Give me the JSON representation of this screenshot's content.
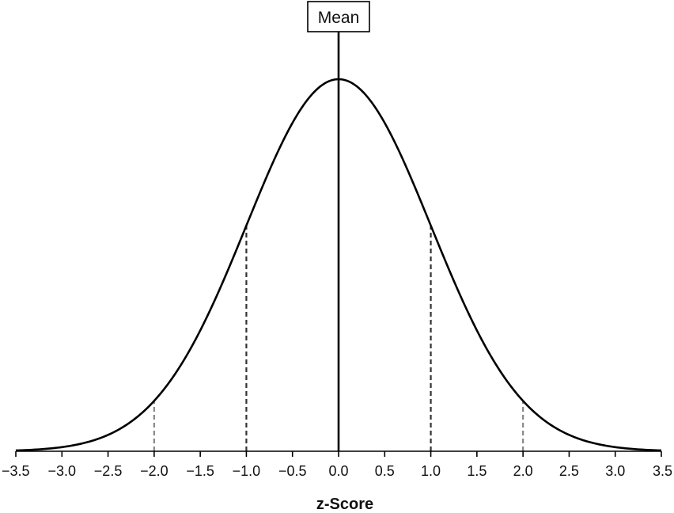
{
  "chart_data": {
    "type": "line",
    "xlabel": "z-Score",
    "ylabel": "",
    "xlim": [
      -3.5,
      3.5
    ],
    "x_ticks": [
      -3.5,
      -3.0,
      -2.5,
      -2.0,
      -1.5,
      -1.0,
      -0.5,
      0.0,
      0.5,
      1.0,
      1.5,
      2.0,
      2.5,
      3.0,
      3.5
    ],
    "x_tick_labels": [
      "−3.5",
      "−3.0",
      "−2.5",
      "−2.0",
      "−1.5",
      "−1.0",
      "−0.5",
      "0.0",
      "0.5",
      "1.0",
      "1.5",
      "2.0",
      "2.5",
      "3.0",
      "3.5"
    ],
    "series": [
      {
        "curve": "normal-density",
        "mean": 0,
        "sd": 1,
        "x": [
          -3.5,
          -3.0,
          -2.5,
          -2.0,
          -1.5,
          -1.0,
          -0.5,
          0.0,
          0.5,
          1.0,
          1.5,
          2.0,
          2.5,
          3.0,
          3.5
        ],
        "y": [
          0.0009,
          0.0044,
          0.0175,
          0.054,
          0.1295,
          0.242,
          0.3521,
          0.3989,
          0.3521,
          0.242,
          0.1295,
          0.054,
          0.0175,
          0.0044,
          0.0009
        ]
      }
    ],
    "mean_line": {
      "x": 0,
      "label": "Mean"
    },
    "reference_lines": [
      {
        "x": -2.0,
        "style": "dashed",
        "color": "#888888"
      },
      {
        "x": -1.0,
        "style": "dashed",
        "color": "#333333"
      },
      {
        "x": 1.0,
        "style": "dashed",
        "color": "#333333"
      },
      {
        "x": 2.0,
        "style": "dashed",
        "color": "#888888"
      }
    ],
    "grid": false,
    "legend": "none"
  }
}
